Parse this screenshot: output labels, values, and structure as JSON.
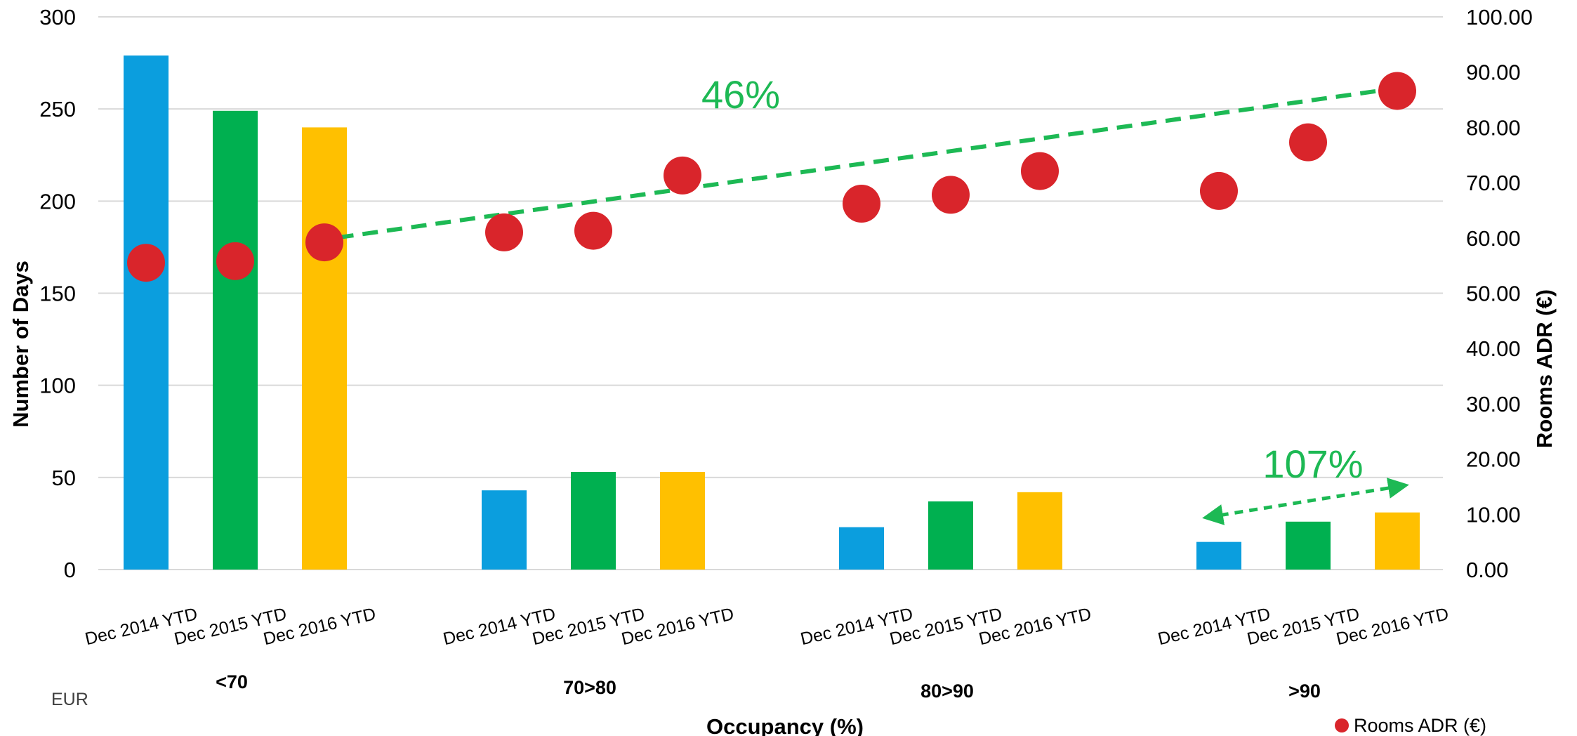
{
  "chart_data": {
    "type": "bar",
    "x_axis_label": "Occupancy (%)",
    "y_axis_left_label": "Number of Days",
    "y_axis_right_label": "Rooms ADR (€)",
    "currency_note": "EUR",
    "left_axis": {
      "min": 0,
      "max": 300,
      "ticks": [
        "0",
        "50",
        "100",
        "150",
        "200",
        "250",
        "300"
      ]
    },
    "right_axis": {
      "min": 0,
      "max": 100,
      "ticks": [
        "0.00",
        "10.00",
        "20.00",
        "30.00",
        "40.00",
        "50.00",
        "60.00",
        "70.00",
        "80.00",
        "90.00",
        "100.00"
      ]
    },
    "groups": [
      {
        "label": "<70",
        "periods": [
          "Dec 2014 YTD",
          "Dec 2015 YTD",
          "Dec 2016 YTD"
        ],
        "days": [
          279,
          249,
          240
        ],
        "adr": [
          55.5,
          55.8,
          59.2
        ]
      },
      {
        "label": "70>80",
        "periods": [
          "Dec 2014 YTD",
          "Dec 2015 YTD",
          "Dec 2016 YTD"
        ],
        "days": [
          43,
          53,
          53
        ],
        "adr": [
          61.0,
          61.3,
          71.3
        ]
      },
      {
        "label": "80>90",
        "periods": [
          "Dec 2014 YTD",
          "Dec 2015 YTD",
          "Dec 2016 YTD"
        ],
        "days": [
          23,
          37,
          42
        ],
        "adr": [
          66.2,
          67.8,
          72.1
        ]
      },
      {
        "label": ">90",
        "periods": [
          "Dec 2014 YTD",
          "Dec 2015 YTD",
          "Dec 2016 YTD"
        ],
        "days": [
          15,
          26,
          31
        ],
        "adr": [
          68.5,
          77.3,
          86.6
        ]
      }
    ],
    "bar_colors": [
      "#0B9EDE",
      "#00B050",
      "#FFC000"
    ],
    "marker_color": "#D9252B",
    "annotation_color": "#1DB954",
    "legend": {
      "position": "bottom-right",
      "entries": [
        {
          "label": "Rooms ADR (€)",
          "marker": "circle"
        }
      ]
    },
    "annotations": [
      {
        "text": "46%"
      },
      {
        "text": "107%"
      }
    ],
    "grid": true
  }
}
